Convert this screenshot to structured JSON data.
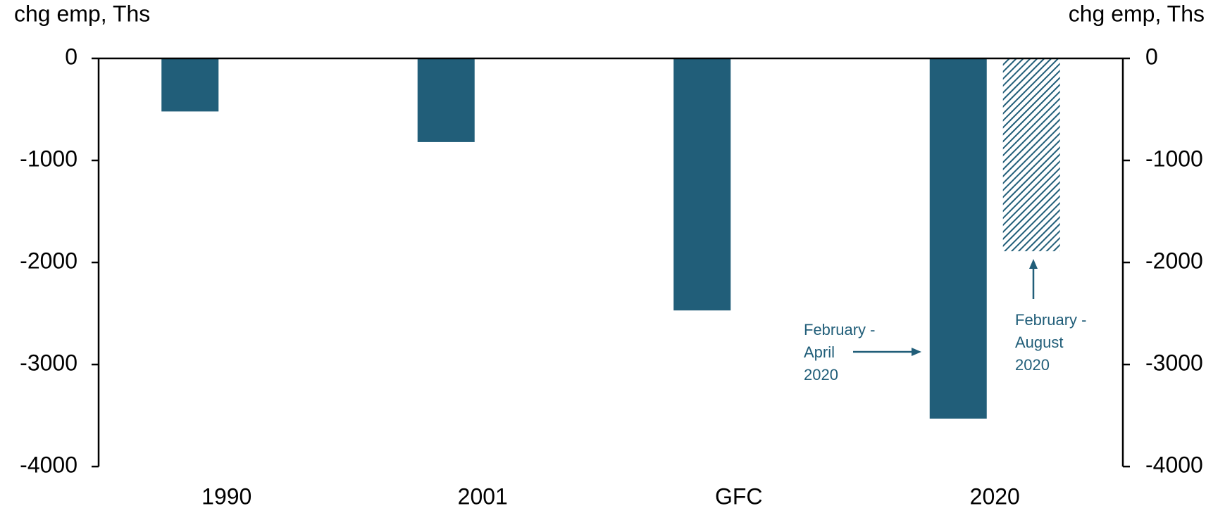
{
  "chart_data": {
    "type": "bar",
    "y_label": "chg emp, Ths",
    "y2_label": "chg emp, Ths",
    "categories": [
      "1990",
      "2001",
      "GFC",
      "2020"
    ],
    "series": [
      {
        "color": "#215e79",
        "values": [
          -520,
          -820,
          -2470,
          -3530
        ]
      },
      {
        "color": "#215e79",
        "pattern": "hatch",
        "values": [
          null,
          null,
          null,
          -1890
        ]
      }
    ],
    "ylim": [
      -4000,
      0
    ],
    "yticks": [
      0,
      -1000,
      -2000,
      -3000,
      -4000
    ],
    "y2lim": [
      -4000,
      0
    ],
    "y2ticks": [
      0,
      -1000,
      -2000,
      -3000,
      -4000
    ],
    "annotations": [
      {
        "lines": [
          "February -",
          "April",
          "2020"
        ],
        "color": "#215e79"
      },
      {
        "lines": [
          "February -",
          "August",
          "2020"
        ],
        "color": "#215e79"
      }
    ]
  }
}
